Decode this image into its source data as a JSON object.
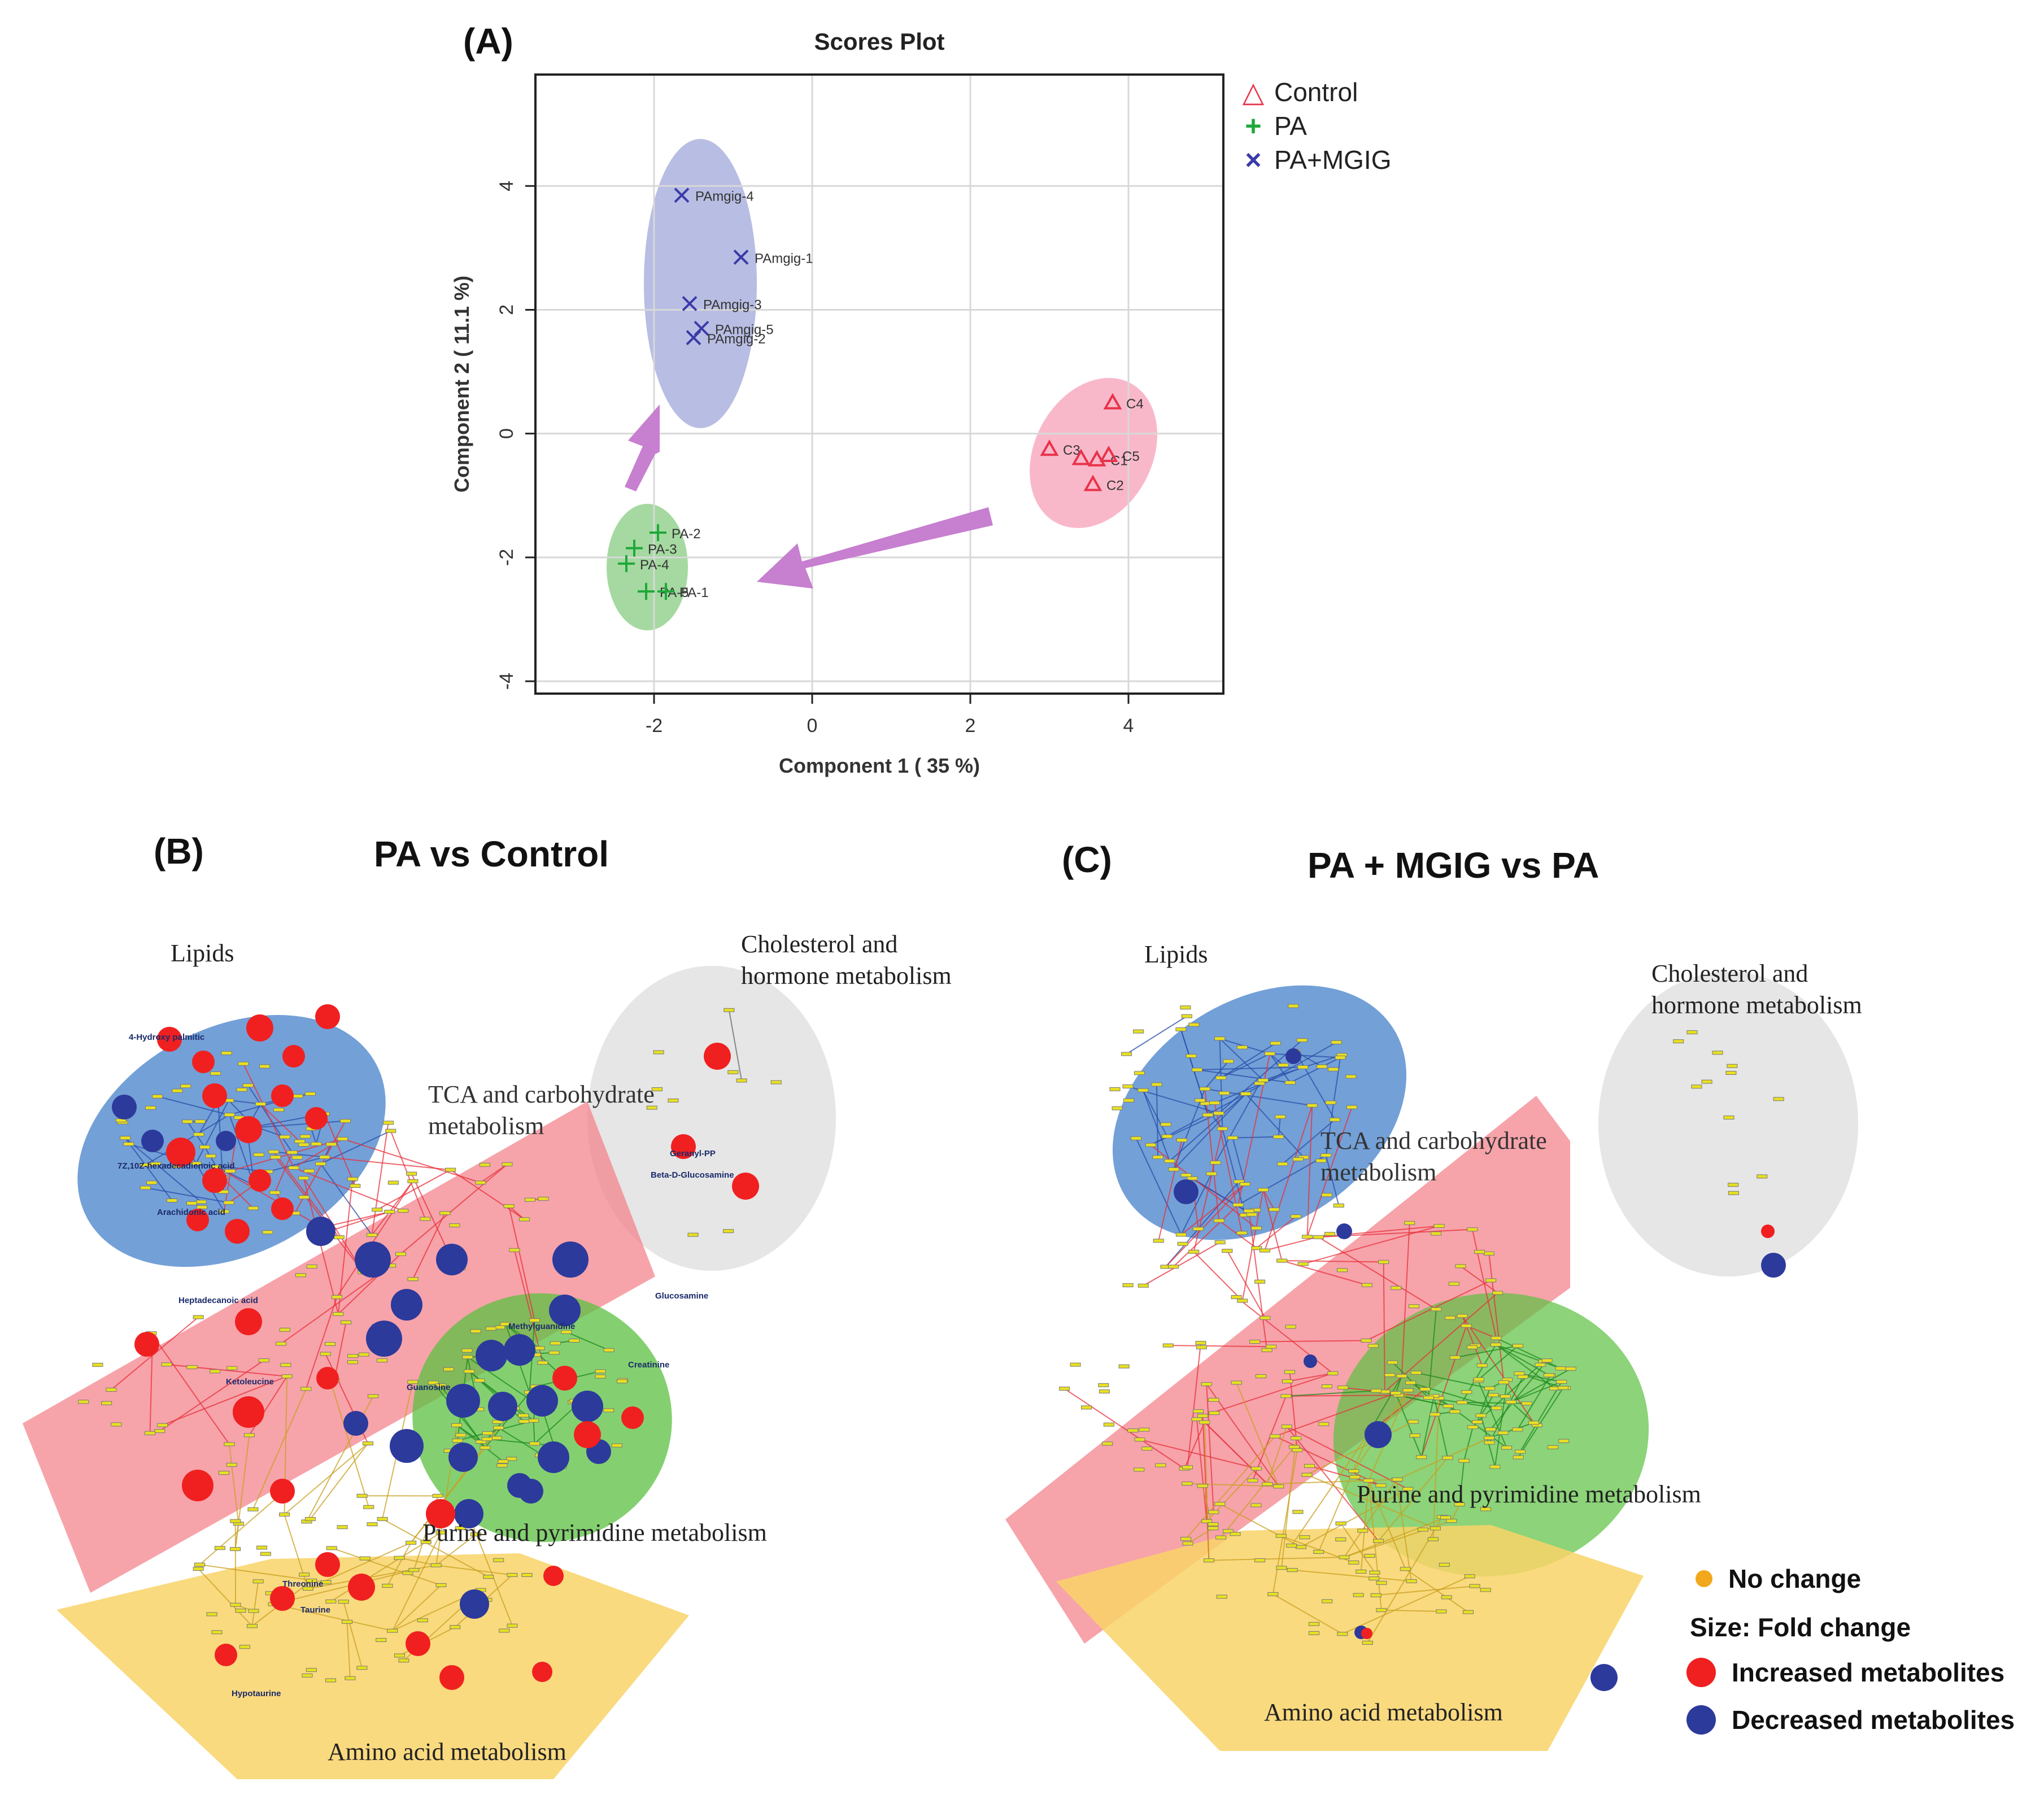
{
  "panels": {
    "a": {
      "letter": "(A)"
    },
    "b": {
      "letter": "(B)",
      "title": "PA vs Control"
    },
    "c": {
      "letter": "(C)",
      "title": "PA + MGIG vs PA"
    }
  },
  "colors": {
    "control": "#e8334a",
    "pa": "#1fa83a",
    "pamgig": "#3a3aa8",
    "increased": "#f02020",
    "decreased": "#2c3a9c",
    "nochange": "#f2a81d",
    "arrow": "#c77fcf"
  },
  "chart_data": {
    "type": "scatter",
    "title": "Scores Plot",
    "xlabel": "Component 1 ( 35 %)",
    "ylabel": "Component 2 ( 11.1 %)",
    "xlim": [
      -3.5,
      5.2
    ],
    "ylim": [
      -4.2,
      5.8
    ],
    "xticks": [
      "-2",
      "0",
      "2",
      "4"
    ],
    "yticks": [
      "-4",
      "-2",
      "0",
      "2",
      "4"
    ],
    "grid": true,
    "legend_position": "right",
    "series": [
      {
        "name": "Control",
        "marker": "△",
        "points": [
          {
            "label": "C4",
            "x": 3.8,
            "y": 0.5
          },
          {
            "label": "C3",
            "x": 3.0,
            "y": -0.25
          },
          {
            "label": "",
            "x": 3.4,
            "y": -0.4
          },
          {
            "label": "C1",
            "x": 3.6,
            "y": -0.42
          },
          {
            "label": "C5",
            "x": 3.75,
            "y": -0.35
          },
          {
            "label": "C2",
            "x": 3.55,
            "y": -0.82
          }
        ]
      },
      {
        "name": "PA",
        "marker": "+",
        "points": [
          {
            "label": "PA-2",
            "x": -1.95,
            "y": -1.6
          },
          {
            "label": "PA-3",
            "x": -2.25,
            "y": -1.85
          },
          {
            "label": "PA-4",
            "x": -2.35,
            "y": -2.1
          },
          {
            "label": "PA-5",
            "x": -2.1,
            "y": -2.55
          },
          {
            "label": "PA-1",
            "x": -1.85,
            "y": -2.55
          }
        ]
      },
      {
        "name": "PA+MGIG",
        "marker": "×",
        "points": [
          {
            "label": "PAmgig-4",
            "x": -1.65,
            "y": 3.85
          },
          {
            "label": "PAmgig-1",
            "x": -0.9,
            "y": 2.85
          },
          {
            "label": "PAmgig-3",
            "x": -1.55,
            "y": 2.1
          },
          {
            "label": "PAmgig-5",
            "x": -1.4,
            "y": 1.7
          },
          {
            "label": "PAmgig-2",
            "x": -1.5,
            "y": 1.55
          }
        ]
      }
    ]
  },
  "network_b": {
    "regions": {
      "lipids": "Lipids",
      "cholesterol_1": "Cholesterol and",
      "cholesterol_2": "hormone metabolism",
      "tca_1": "TCA and carbohydrate",
      "tca_2": "metabolism",
      "purine": "Purine and pyrimidine metabolism",
      "amino": "Amino acid metabolism"
    },
    "node_labels": [
      "4-Hydroxy palmitic",
      "7Z,10Z-hexadecadienoic acid",
      "Arachidonic acid",
      "Heptadecanoic acid",
      "Ketoleucine",
      "Glucosamine",
      "Taurine",
      "Hypotaurine",
      "Threonine",
      "Geranyl-PP",
      "Beta-D-Glucosamine",
      "Methylguanidine",
      "Creatinine",
      "Guanosine"
    ]
  },
  "network_c": {
    "regions": {
      "lipids": "Lipids",
      "cholesterol_1": "Cholesterol and",
      "cholesterol_2": "hormone metabolism",
      "tca_1": "TCA and carbohydrate",
      "tca_2": "metabolism",
      "purine": "Purine and pyrimidine metabolism",
      "amino": "Amino acid metabolism"
    }
  },
  "legend": {
    "no_change": "No change",
    "size": "Size: Fold change",
    "increased": "Increased metabolites",
    "decreased": "Decreased metabolites"
  }
}
